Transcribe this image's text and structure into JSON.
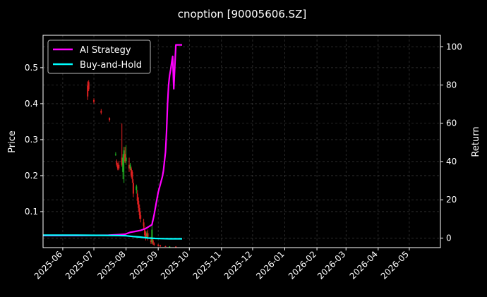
{
  "chart_data": {
    "type": "line",
    "title": "cnoption [90005606.SZ]",
    "ylabel_left": "Price",
    "ylabel_right": "Return",
    "xlabel": "",
    "x_ticks": [
      "2025-06",
      "2025-07",
      "2025-08",
      "2025-09",
      "2025-10",
      "2025-11",
      "2025-12",
      "2026-01",
      "2026-02",
      "2026-03",
      "2026-04",
      "2026-05"
    ],
    "x_range": [
      "2025-05-13",
      "2026-05-31"
    ],
    "y_left_ticks": [
      "0.1",
      "0.2",
      "0.3",
      "0.4",
      "0.5"
    ],
    "y_left_range": [
      0.0,
      0.59
    ],
    "y_right_ticks": [
      "0",
      "20",
      "40",
      "60",
      "80",
      "100"
    ],
    "y_right_range": [
      -5,
      106
    ],
    "grid": true,
    "legend_position": "top-left",
    "series": [
      {
        "name": "AI Strategy",
        "color": "#ff00ff",
        "axis": "right",
        "x": [
          "2025-05-13",
          "2025-06-15",
          "2025-07-15",
          "2025-07-25",
          "2025-07-31",
          "2025-08-05",
          "2025-08-10",
          "2025-08-15",
          "2025-08-20",
          "2025-08-23",
          "2025-08-26",
          "2025-08-28",
          "2025-08-30",
          "2025-09-01",
          "2025-09-03",
          "2025-09-05",
          "2025-09-06",
          "2025-09-08",
          "2025-09-09",
          "2025-09-10",
          "2025-09-11",
          "2025-09-12",
          "2025-09-13",
          "2025-09-14",
          "2025-09-15",
          "2025-09-16",
          "2025-09-17",
          "2025-09-18",
          "2025-09-19",
          "2025-09-20",
          "2025-09-21",
          "2025-09-24"
        ],
        "values": [
          1.3,
          1.3,
          1.5,
          1.8,
          2.0,
          3.0,
          3.5,
          4.0,
          5.0,
          6.0,
          7.0,
          12.0,
          18.0,
          24.0,
          28.0,
          32.0,
          35.0,
          45.0,
          55.0,
          70.0,
          80.0,
          85.0,
          88.0,
          92.0,
          95.0,
          78.0,
          90.0,
          101.0,
          101.0,
          101.0,
          101.0,
          101.0
        ]
      },
      {
        "name": "Buy-and-Hold",
        "color": "#00ffff",
        "axis": "right",
        "x": [
          "2025-05-13",
          "2025-06-15",
          "2025-07-10",
          "2025-07-25",
          "2025-08-01",
          "2025-08-08",
          "2025-08-15",
          "2025-08-22",
          "2025-08-29",
          "2025-09-05",
          "2025-09-12",
          "2025-09-19",
          "2025-09-24"
        ],
        "values": [
          1.5,
          1.5,
          1.4,
          1.3,
          1.2,
          0.8,
          0.5,
          0.0,
          -0.2,
          -0.3,
          -0.4,
          -0.4,
          -0.4
        ]
      }
    ],
    "candles": [
      {
        "date": "2025-06-25",
        "open": 0.45,
        "close": 0.42,
        "high": 0.462,
        "low": 0.41
      },
      {
        "date": "2025-06-26",
        "open": 0.46,
        "close": 0.44,
        "high": 0.465,
        "low": 0.435
      },
      {
        "date": "2025-07-01",
        "open": 0.41,
        "close": 0.405,
        "high": 0.415,
        "low": 0.4
      },
      {
        "date": "2025-07-08",
        "open": 0.38,
        "close": 0.375,
        "high": 0.385,
        "low": 0.37
      },
      {
        "date": "2025-07-16",
        "open": 0.36,
        "close": 0.355,
        "high": 0.362,
        "low": 0.35
      },
      {
        "date": "2025-07-22",
        "open": 0.26,
        "close": 0.26,
        "high": 0.265,
        "low": 0.255
      },
      {
        "date": "2025-07-23",
        "open": 0.24,
        "close": 0.23,
        "high": 0.245,
        "low": 0.225
      },
      {
        "date": "2025-07-24",
        "open": 0.23,
        "close": 0.22,
        "high": 0.235,
        "low": 0.215
      },
      {
        "date": "2025-07-25",
        "open": 0.23,
        "close": 0.22,
        "high": 0.24,
        "low": 0.215
      },
      {
        "date": "2025-07-28",
        "open": 0.25,
        "close": 0.23,
        "high": 0.345,
        "low": 0.225
      },
      {
        "date": "2025-07-29",
        "open": 0.21,
        "close": 0.25,
        "high": 0.26,
        "low": 0.19
      },
      {
        "date": "2025-07-30",
        "open": 0.25,
        "close": 0.27,
        "high": 0.28,
        "low": 0.18
      },
      {
        "date": "2025-07-31",
        "open": 0.26,
        "close": 0.24,
        "high": 0.28,
        "low": 0.235
      },
      {
        "date": "2025-08-01",
        "open": 0.24,
        "close": 0.25,
        "high": 0.285,
        "low": 0.23
      },
      {
        "date": "2025-08-04",
        "open": 0.23,
        "close": 0.22,
        "high": 0.25,
        "low": 0.21
      },
      {
        "date": "2025-08-05",
        "open": 0.22,
        "close": 0.23,
        "high": 0.235,
        "low": 0.215
      },
      {
        "date": "2025-08-06",
        "open": 0.22,
        "close": 0.2,
        "high": 0.225,
        "low": 0.195
      },
      {
        "date": "2025-08-07",
        "open": 0.21,
        "close": 0.19,
        "high": 0.215,
        "low": 0.18
      },
      {
        "date": "2025-08-08",
        "open": 0.18,
        "close": 0.15,
        "high": 0.19,
        "low": 0.14
      },
      {
        "date": "2025-08-11",
        "open": 0.16,
        "close": 0.17,
        "high": 0.175,
        "low": 0.15
      },
      {
        "date": "2025-08-12",
        "open": 0.15,
        "close": 0.13,
        "high": 0.16,
        "low": 0.12
      },
      {
        "date": "2025-08-13",
        "open": 0.13,
        "close": 0.11,
        "high": 0.14,
        "low": 0.1
      },
      {
        "date": "2025-08-14",
        "open": 0.11,
        "close": 0.09,
        "high": 0.12,
        "low": 0.08
      },
      {
        "date": "2025-08-15",
        "open": 0.09,
        "close": 0.08,
        "high": 0.1,
        "low": 0.07
      },
      {
        "date": "2025-08-18",
        "open": 0.07,
        "close": 0.06,
        "high": 0.08,
        "low": 0.05
      },
      {
        "date": "2025-08-19",
        "open": 0.05,
        "close": 0.035,
        "high": 0.06,
        "low": 0.03
      },
      {
        "date": "2025-08-20",
        "open": 0.04,
        "close": 0.03,
        "high": 0.045,
        "low": 0.02
      },
      {
        "date": "2025-08-21",
        "open": 0.03,
        "close": 0.035,
        "high": 0.045,
        "low": 0.025
      },
      {
        "date": "2025-08-22",
        "open": 0.04,
        "close": 0.03,
        "high": 0.05,
        "low": 0.02
      },
      {
        "date": "2025-08-25",
        "open": 0.02,
        "close": 0.015,
        "high": 0.03,
        "low": 0.01
      },
      {
        "date": "2025-08-26",
        "open": 0.015,
        "close": 0.05,
        "high": 0.075,
        "low": 0.01
      },
      {
        "date": "2025-08-27",
        "open": 0.02,
        "close": 0.012,
        "high": 0.025,
        "low": 0.008
      },
      {
        "date": "2025-08-28",
        "open": 0.012,
        "close": 0.008,
        "high": 0.015,
        "low": 0.005
      },
      {
        "date": "2025-09-01",
        "open": 0.008,
        "close": 0.005,
        "high": 0.01,
        "low": 0.003
      },
      {
        "date": "2025-09-03",
        "open": 0.006,
        "close": 0.004,
        "high": 0.008,
        "low": 0.002
      },
      {
        "date": "2025-09-08",
        "open": 0.004,
        "close": 0.003,
        "high": 0.005,
        "low": 0.002
      },
      {
        "date": "2025-09-12",
        "open": 0.003,
        "close": 0.003,
        "high": 0.004,
        "low": 0.002
      },
      {
        "date": "2025-09-18",
        "open": 0.003,
        "close": 0.002,
        "high": 0.004,
        "low": 0.001
      }
    ]
  }
}
